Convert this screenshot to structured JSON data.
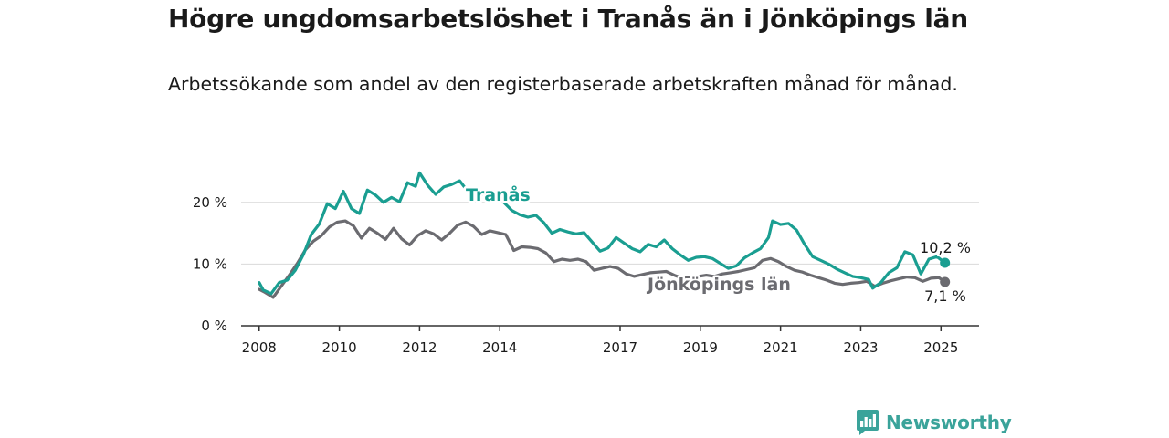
{
  "title": "Högre ungdomsarbetslöshet i Tranås än i Jönköpings län",
  "subtitle": "Arbetssökande som andel av den registerbaserade arbetskraften månad för månad.",
  "brand": "Newsworthy",
  "chart_data": {
    "type": "line",
    "title": "Högre ungdomsarbetslöshet i Tranås än i Jönköpings län",
    "subtitle": "Arbetssökande som andel av den registerbaserade arbetskraften månad för månad.",
    "ylim": [
      0,
      25
    ],
    "yticks": [
      0,
      10,
      20
    ],
    "ytick_labels": [
      "0 %",
      "10 %",
      "20 %"
    ],
    "xlim": [
      2007.55,
      2025.95
    ],
    "xticks": [
      2008,
      2010,
      2012,
      2014,
      2017,
      2019,
      2021,
      2023,
      2025
    ],
    "xtick_labels": [
      "2008",
      "2010",
      "2012",
      "2014",
      "2017",
      "2019",
      "2021",
      "2023",
      "2025"
    ],
    "grid": true,
    "series": [
      {
        "name": "Tranås",
        "color": "#1a9e91",
        "end_label": "10,2 %",
        "points": [
          [
            2008.0,
            7.0
          ],
          [
            2008.1,
            5.8
          ],
          [
            2008.3,
            5.2
          ],
          [
            2008.5,
            7.0
          ],
          [
            2008.7,
            7.4
          ],
          [
            2008.9,
            9.0
          ],
          [
            2009.1,
            11.5
          ],
          [
            2009.3,
            14.8
          ],
          [
            2009.5,
            16.5
          ],
          [
            2009.7,
            19.8
          ],
          [
            2009.9,
            19.0
          ],
          [
            2010.1,
            21.8
          ],
          [
            2010.3,
            19.0
          ],
          [
            2010.5,
            18.2
          ],
          [
            2010.7,
            22.0
          ],
          [
            2010.9,
            21.2
          ],
          [
            2011.1,
            20.0
          ],
          [
            2011.3,
            20.8
          ],
          [
            2011.5,
            20.1
          ],
          [
            2011.7,
            23.2
          ],
          [
            2011.9,
            22.6
          ],
          [
            2012.0,
            24.8
          ],
          [
            2012.2,
            22.8
          ],
          [
            2012.4,
            21.3
          ],
          [
            2012.6,
            22.5
          ],
          [
            2012.8,
            22.9
          ],
          [
            2013.0,
            23.5
          ],
          [
            2013.2,
            21.8
          ],
          [
            2013.4,
            20.9
          ],
          [
            2013.6,
            21.4
          ],
          [
            2013.8,
            20.8
          ],
          [
            2014.1,
            20.0
          ],
          [
            2014.3,
            18.7
          ],
          [
            2014.5,
            18.0
          ],
          [
            2014.7,
            17.6
          ],
          [
            2014.9,
            17.9
          ],
          [
            2015.1,
            16.7
          ],
          [
            2015.3,
            15.0
          ],
          [
            2015.5,
            15.6
          ],
          [
            2015.7,
            15.2
          ],
          [
            2015.9,
            14.9
          ],
          [
            2016.1,
            15.1
          ],
          [
            2016.3,
            13.6
          ],
          [
            2016.5,
            12.1
          ],
          [
            2016.7,
            12.6
          ],
          [
            2016.9,
            14.3
          ],
          [
            2017.1,
            13.4
          ],
          [
            2017.3,
            12.5
          ],
          [
            2017.5,
            12.0
          ],
          [
            2017.7,
            13.2
          ],
          [
            2017.9,
            12.8
          ],
          [
            2018.1,
            13.9
          ],
          [
            2018.3,
            12.5
          ],
          [
            2018.5,
            11.5
          ],
          [
            2018.7,
            10.6
          ],
          [
            2018.9,
            11.1
          ],
          [
            2019.1,
            11.2
          ],
          [
            2019.3,
            10.9
          ],
          [
            2019.5,
            10.1
          ],
          [
            2019.7,
            9.3
          ],
          [
            2019.9,
            9.7
          ],
          [
            2020.1,
            11.0
          ],
          [
            2020.3,
            11.8
          ],
          [
            2020.5,
            12.5
          ],
          [
            2020.7,
            14.3
          ],
          [
            2020.8,
            17.0
          ],
          [
            2021.0,
            16.4
          ],
          [
            2021.2,
            16.6
          ],
          [
            2021.4,
            15.5
          ],
          [
            2021.6,
            13.2
          ],
          [
            2021.8,
            11.2
          ],
          [
            2022.0,
            10.6
          ],
          [
            2022.2,
            10.0
          ],
          [
            2022.4,
            9.2
          ],
          [
            2022.6,
            8.6
          ],
          [
            2022.8,
            8.0
          ],
          [
            2023.0,
            7.8
          ],
          [
            2023.2,
            7.5
          ],
          [
            2023.3,
            6.1
          ],
          [
            2023.5,
            7.0
          ],
          [
            2023.7,
            8.6
          ],
          [
            2023.9,
            9.4
          ],
          [
            2024.1,
            12.0
          ],
          [
            2024.3,
            11.5
          ],
          [
            2024.5,
            8.4
          ],
          [
            2024.7,
            10.8
          ],
          [
            2024.9,
            11.2
          ],
          [
            2025.1,
            10.2
          ]
        ]
      },
      {
        "name": "Jönköpings län",
        "color": "#6b6b70",
        "end_label": "7,1 %",
        "points": [
          [
            2008.0,
            5.9
          ],
          [
            2008.15,
            5.4
          ],
          [
            2008.35,
            4.6
          ],
          [
            2008.55,
            6.4
          ],
          [
            2008.75,
            8.2
          ],
          [
            2008.95,
            10.1
          ],
          [
            2009.15,
            12.3
          ],
          [
            2009.35,
            13.7
          ],
          [
            2009.55,
            14.6
          ],
          [
            2009.75,
            16.0
          ],
          [
            2009.95,
            16.8
          ],
          [
            2010.15,
            17.0
          ],
          [
            2010.35,
            16.2
          ],
          [
            2010.55,
            14.2
          ],
          [
            2010.75,
            15.8
          ],
          [
            2010.95,
            15.0
          ],
          [
            2011.15,
            14.0
          ],
          [
            2011.35,
            15.8
          ],
          [
            2011.55,
            14.1
          ],
          [
            2011.75,
            13.1
          ],
          [
            2011.95,
            14.6
          ],
          [
            2012.15,
            15.4
          ],
          [
            2012.35,
            14.9
          ],
          [
            2012.55,
            13.9
          ],
          [
            2012.75,
            15.0
          ],
          [
            2012.95,
            16.3
          ],
          [
            2013.15,
            16.8
          ],
          [
            2013.35,
            16.1
          ],
          [
            2013.55,
            14.8
          ],
          [
            2013.75,
            15.4
          ],
          [
            2013.95,
            15.1
          ],
          [
            2014.15,
            14.8
          ],
          [
            2014.35,
            12.2
          ],
          [
            2014.55,
            12.8
          ],
          [
            2014.75,
            12.7
          ],
          [
            2014.95,
            12.5
          ],
          [
            2015.15,
            11.8
          ],
          [
            2015.35,
            10.4
          ],
          [
            2015.55,
            10.8
          ],
          [
            2015.75,
            10.6
          ],
          [
            2015.95,
            10.8
          ],
          [
            2016.15,
            10.4
          ],
          [
            2016.35,
            9.0
          ],
          [
            2016.55,
            9.3
          ],
          [
            2016.75,
            9.6
          ],
          [
            2016.95,
            9.3
          ],
          [
            2017.15,
            8.4
          ],
          [
            2017.35,
            8.0
          ],
          [
            2017.55,
            8.3
          ],
          [
            2017.75,
            8.6
          ],
          [
            2017.95,
            8.7
          ],
          [
            2018.15,
            8.8
          ],
          [
            2018.35,
            8.2
          ],
          [
            2018.55,
            7.7
          ],
          [
            2018.75,
            7.8
          ],
          [
            2018.95,
            8.0
          ],
          [
            2019.15,
            8.2
          ],
          [
            2019.35,
            8.0
          ],
          [
            2019.55,
            8.4
          ],
          [
            2019.75,
            8.6
          ],
          [
            2019.95,
            8.8
          ],
          [
            2020.15,
            9.1
          ],
          [
            2020.35,
            9.4
          ],
          [
            2020.55,
            10.6
          ],
          [
            2020.75,
            10.9
          ],
          [
            2020.95,
            10.4
          ],
          [
            2021.15,
            9.6
          ],
          [
            2021.35,
            9.0
          ],
          [
            2021.55,
            8.7
          ],
          [
            2021.75,
            8.2
          ],
          [
            2021.95,
            7.8
          ],
          [
            2022.15,
            7.4
          ],
          [
            2022.35,
            6.9
          ],
          [
            2022.55,
            6.7
          ],
          [
            2022.75,
            6.9
          ],
          [
            2022.95,
            7.0
          ],
          [
            2023.15,
            7.2
          ],
          [
            2023.35,
            6.4
          ],
          [
            2023.55,
            6.9
          ],
          [
            2023.75,
            7.3
          ],
          [
            2023.95,
            7.6
          ],
          [
            2024.15,
            7.9
          ],
          [
            2024.35,
            7.8
          ],
          [
            2024.55,
            7.2
          ],
          [
            2024.75,
            7.7
          ],
          [
            2024.95,
            7.8
          ],
          [
            2025.1,
            7.1
          ]
        ]
      }
    ]
  }
}
